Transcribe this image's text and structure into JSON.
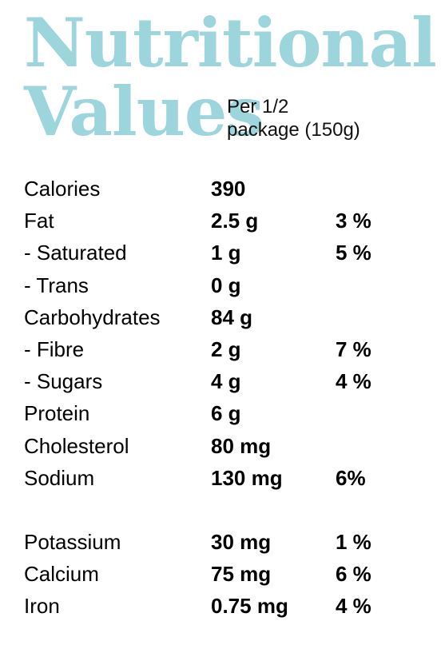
{
  "header": {
    "title_line1": "Nutritional",
    "title_line2": "Values",
    "serving_line1": "Per 1/2",
    "serving_line2": "package (150g)"
  },
  "accent_color": "#9dd5dd",
  "rows": [
    {
      "name": "Calories",
      "amount": "390",
      "percent": ""
    },
    {
      "name": "Fat",
      "amount": "2.5 g",
      "percent": "3 %"
    },
    {
      "name": " - Saturated",
      "amount": "1 g",
      "percent": "5 %"
    },
    {
      "name": " - Trans",
      "amount": "0 g",
      "percent": ""
    },
    {
      "name": "Carbohydrates",
      "amount": "84 g",
      "percent": ""
    },
    {
      "name": " - Fibre",
      "amount": "2 g",
      "percent": "7 %"
    },
    {
      "name": " - Sugars",
      "amount": "4 g",
      "percent": "4 %"
    },
    {
      "name": "Protein",
      "amount": "6 g",
      "percent": ""
    },
    {
      "name": "Cholesterol",
      "amount": "80 mg",
      "percent": ""
    },
    {
      "name": "Sodium",
      "amount": "130 mg",
      "percent": "6%"
    },
    {
      "name": "Potassium",
      "amount": "30 mg",
      "percent": "1 %"
    },
    {
      "name": "Calcium",
      "amount": "75 mg",
      "percent": "6 %"
    },
    {
      "name": "Iron",
      "amount": "0.75 mg",
      "percent": "4 %"
    }
  ]
}
